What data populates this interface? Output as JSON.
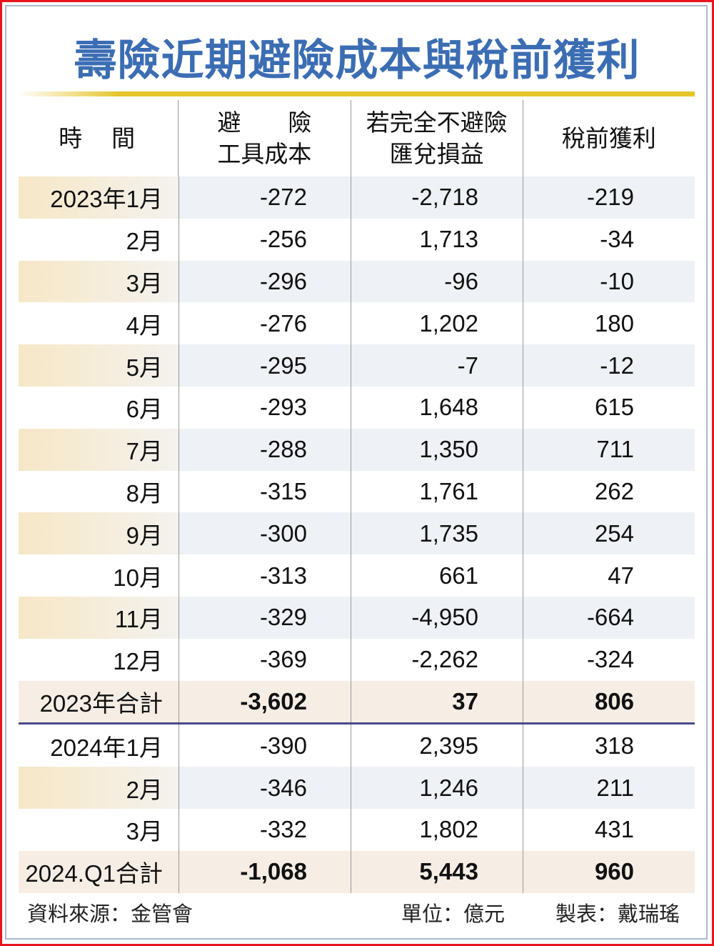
{
  "title": "壽險近期避險成本與稅前獲利",
  "chart_data": {
    "type": "table",
    "title": "壽險近期避險成本與稅前獲利",
    "columns": [
      "時　間",
      "避　　險\n工具成本",
      "若完全不避險\n匯兌損益",
      "稅前獲利"
    ],
    "rows": [
      {
        "label": "2023年1月",
        "values": [
          "-272",
          "-2,718",
          "-219"
        ],
        "kind": "shade"
      },
      {
        "label": "2月",
        "values": [
          "-256",
          "1,713",
          "-34"
        ],
        "kind": "plain"
      },
      {
        "label": "3月",
        "values": [
          "-296",
          "-96",
          "-10"
        ],
        "kind": "shade"
      },
      {
        "label": "4月",
        "values": [
          "-276",
          "1,202",
          "180"
        ],
        "kind": "plain"
      },
      {
        "label": "5月",
        "values": [
          "-295",
          "-7",
          "-12"
        ],
        "kind": "shade"
      },
      {
        "label": "6月",
        "values": [
          "-293",
          "1,648",
          "615"
        ],
        "kind": "plain"
      },
      {
        "label": "7月",
        "values": [
          "-288",
          "1,350",
          "711"
        ],
        "kind": "shade"
      },
      {
        "label": "8月",
        "values": [
          "-315",
          "1,761",
          "262"
        ],
        "kind": "plain"
      },
      {
        "label": "9月",
        "values": [
          "-300",
          "1,735",
          "254"
        ],
        "kind": "shade"
      },
      {
        "label": "10月",
        "values": [
          "-313",
          "661",
          "47"
        ],
        "kind": "plain"
      },
      {
        "label": "11月",
        "values": [
          "-329",
          "-4,950",
          "-664"
        ],
        "kind": "shade"
      },
      {
        "label": "12月",
        "values": [
          "-369",
          "-2,262",
          "-324"
        ],
        "kind": "plain"
      },
      {
        "label": "2023年合計",
        "values": [
          "-3,602",
          "37",
          "806"
        ],
        "kind": "total sep"
      },
      {
        "label": "2024年1月",
        "values": [
          "-390",
          "2,395",
          "318"
        ],
        "kind": "plain"
      },
      {
        "label": "2月",
        "values": [
          "-346",
          "1,246",
          "211"
        ],
        "kind": "shade"
      },
      {
        "label": "3月",
        "values": [
          "-332",
          "1,802",
          "431"
        ],
        "kind": "plain"
      },
      {
        "label": "2024.Q1合計",
        "values": [
          "-1,068",
          "5,443",
          "960"
        ],
        "kind": "total"
      }
    ]
  },
  "footer": {
    "source": "資料來源：金管會",
    "unit": "單位：億元",
    "credit": "製表：戴瑞瑤"
  },
  "colors": {
    "title": "#3b6db3",
    "border": "#e8141c",
    "gold": "#e6c52a"
  }
}
